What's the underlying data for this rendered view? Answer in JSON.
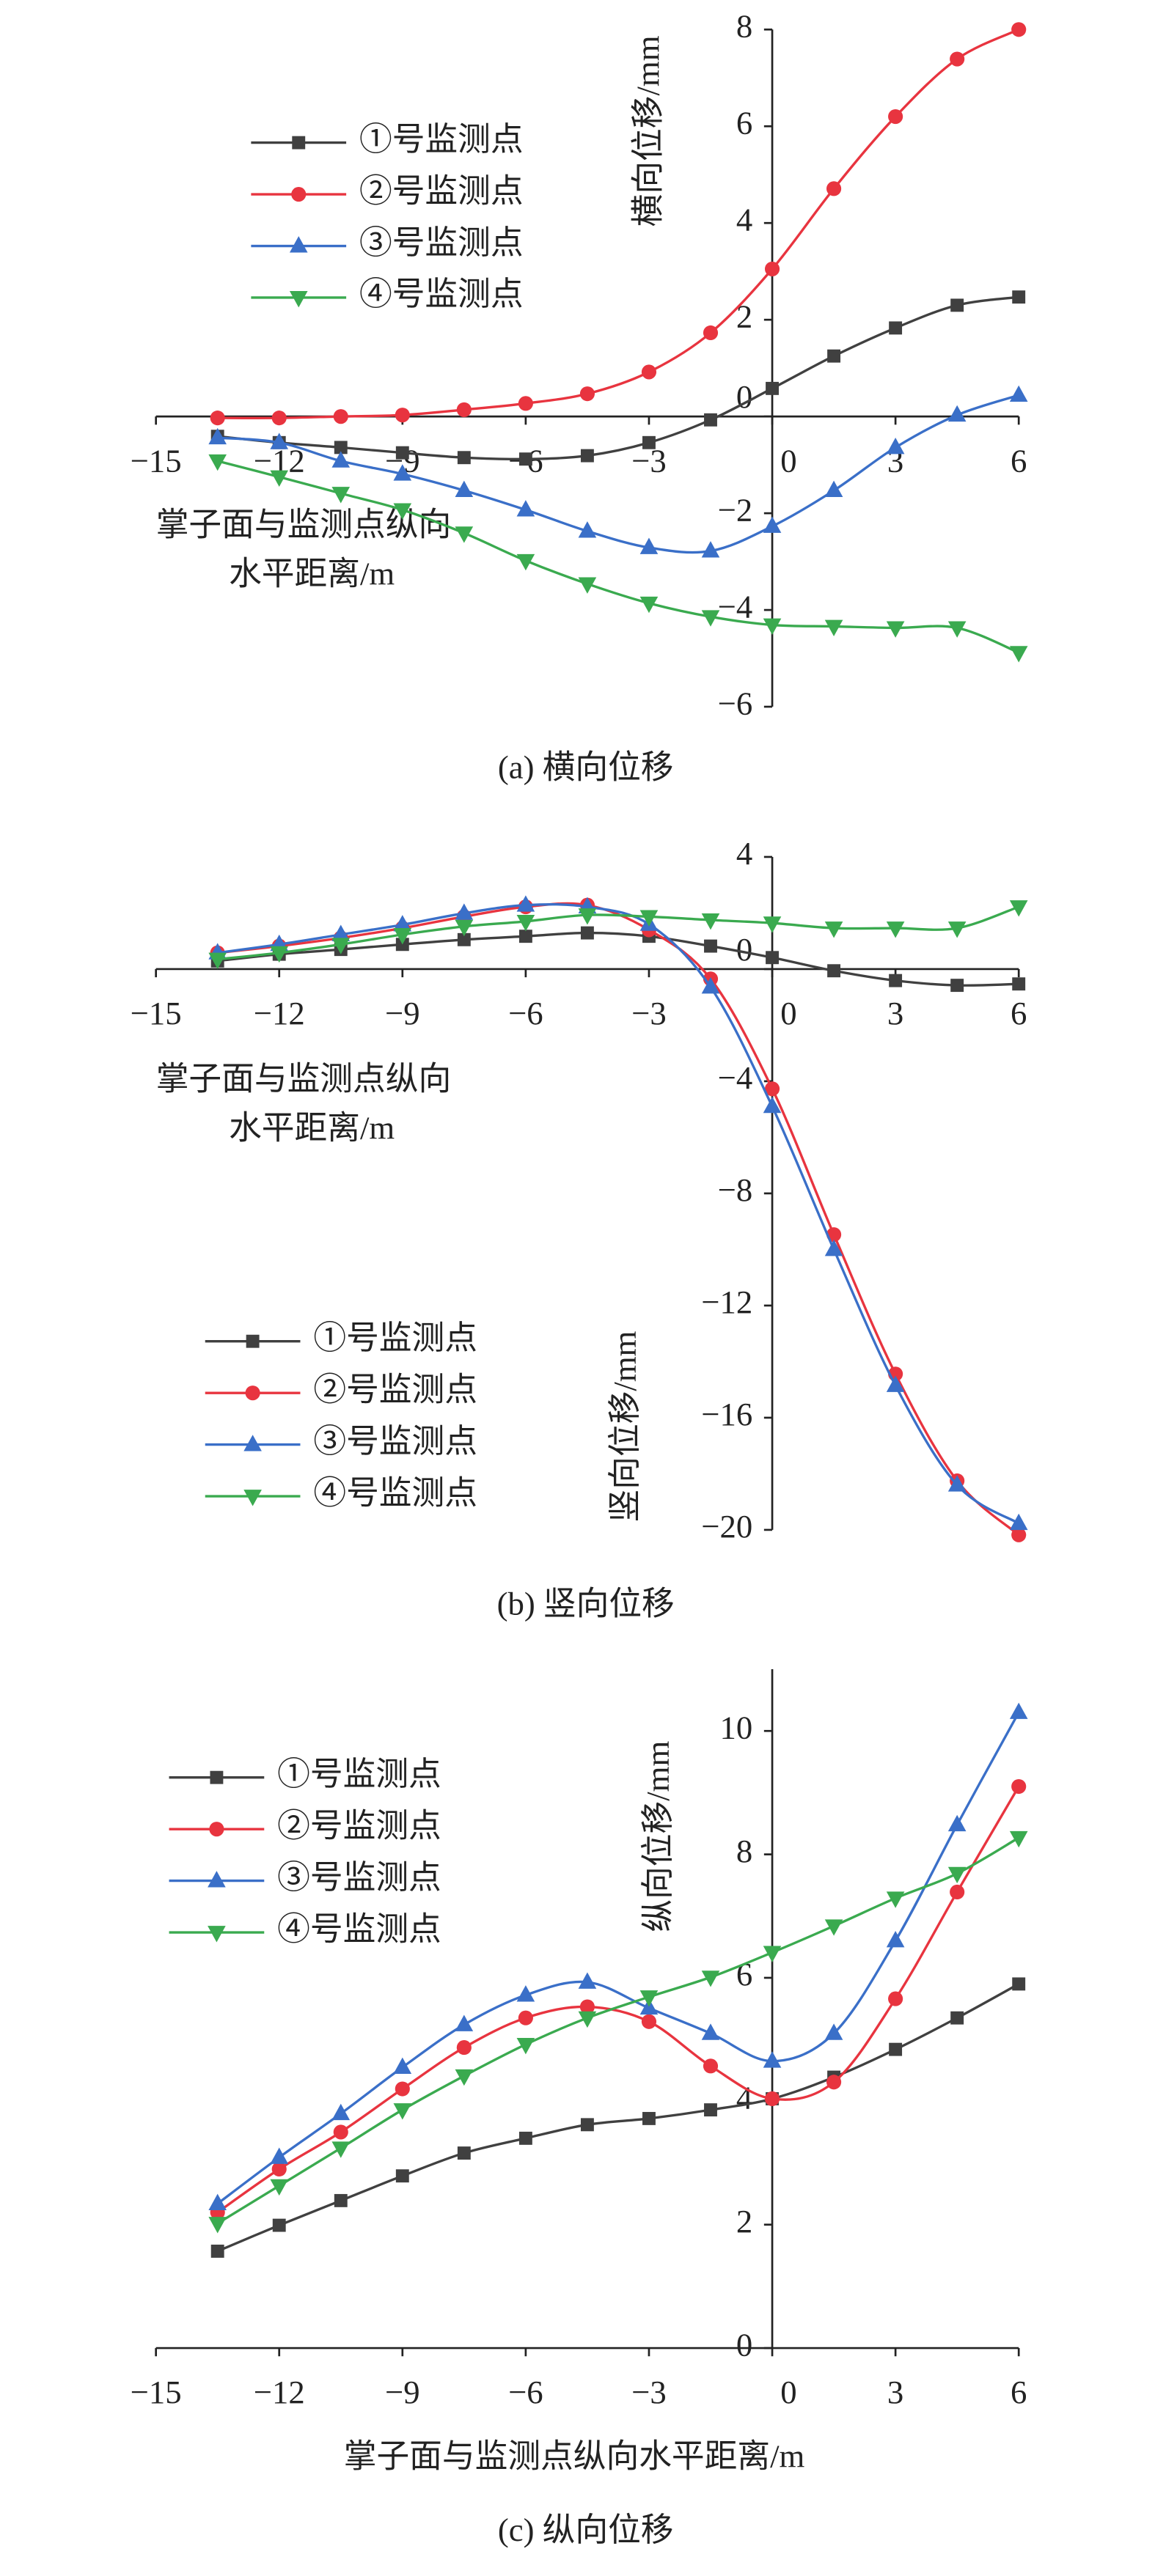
{
  "chart_data": [
    {
      "type": "line",
      "caption": "(a) 横向位移",
      "x_label": [
        "掌子面与监测点纵向",
        "水平距离/m"
      ],
      "y_label": "横向位移/mm",
      "xlim": [
        -15,
        6
      ],
      "ylim": [
        -6,
        8
      ],
      "xticks": [
        {
          "value": -15,
          "label": "−15"
        },
        {
          "value": -12,
          "label": "−12"
        },
        {
          "value": -9,
          "label": "−9"
        },
        {
          "value": -6,
          "label": "−6"
        },
        {
          "value": -3,
          "label": "−3"
        },
        0,
        3,
        6
      ],
      "yticks": [
        {
          "value": -6,
          "label": "−6"
        },
        {
          "value": -4,
          "label": "−4"
        },
        {
          "value": -2,
          "label": "−2"
        },
        0,
        2,
        4,
        6,
        8
      ],
      "legend": "upper left",
      "x": [
        -13.5,
        -12,
        -10.5,
        -9,
        -7.5,
        -6,
        -4.5,
        -3,
        -1.5,
        0,
        1.5,
        3,
        4.5,
        6
      ],
      "series": [
        {
          "name": "①号监测点",
          "color": "#404040",
          "marker": "square",
          "values": [
            -0.41,
            -0.54,
            -0.64,
            -0.75,
            -0.85,
            -0.88,
            -0.81,
            -0.54,
            -0.07,
            0.58,
            1.25,
            1.83,
            2.3,
            2.47
          ]
        },
        {
          "name": "②号监测点",
          "color": "#e8343f",
          "marker": "circle",
          "values": [
            -0.03,
            -0.03,
            0,
            0.03,
            0.14,
            0.27,
            0.47,
            0.92,
            1.73,
            3.05,
            4.71,
            6.2,
            7.39,
            8.0
          ]
        },
        {
          "name": "③号监测点",
          "color": "#3a6fc8",
          "marker": "triangle-up",
          "values": [
            -0.44,
            -0.54,
            -0.92,
            -1.19,
            -1.53,
            -1.93,
            -2.37,
            -2.71,
            -2.78,
            -2.27,
            -1.53,
            -0.64,
            0.03,
            0.44
          ]
        },
        {
          "name": "④号监测点",
          "color": "#3aaa4f",
          "marker": "triangle-down",
          "values": [
            -0.92,
            -1.25,
            -1.59,
            -1.93,
            -2.41,
            -2.98,
            -3.46,
            -3.86,
            -4.14,
            -4.31,
            -4.34,
            -4.37,
            -4.37,
            -4.88
          ]
        }
      ]
    },
    {
      "type": "line",
      "caption": "(b) 竖向位移",
      "x_label": [
        "掌子面与监测点纵向",
        "水平距离/m"
      ],
      "y_label": "竖向位移/mm",
      "xlim": [
        -15,
        6
      ],
      "ylim": [
        -20,
        4
      ],
      "xticks": [
        {
          "value": -15,
          "label": "−15"
        },
        {
          "value": -12,
          "label": "−12"
        },
        {
          "value": -9,
          "label": "−9"
        },
        {
          "value": -6,
          "label": "−6"
        },
        {
          "value": -3,
          "label": "−3"
        },
        0,
        3,
        6
      ],
      "yticks": [
        {
          "value": -20,
          "label": "−20"
        },
        {
          "value": -16,
          "label": "−16"
        },
        {
          "value": -12,
          "label": "−12"
        },
        {
          "value": -8,
          "label": "−8"
        },
        {
          "value": -4,
          "label": "−4"
        },
        0,
        4
      ],
      "legend": "lower left",
      "x": [
        -13.5,
        -12,
        -10.5,
        -9,
        -7.5,
        -6,
        -4.5,
        -3,
        -1.5,
        0,
        1.5,
        3,
        4.5,
        6
      ],
      "series": [
        {
          "name": "①号监测点",
          "color": "#404040",
          "marker": "square",
          "values": [
            0.29,
            0.53,
            0.7,
            0.88,
            1.05,
            1.17,
            1.29,
            1.17,
            0.82,
            0.41,
            -0.06,
            -0.41,
            -0.58,
            -0.53
          ]
        },
        {
          "name": "②号监测点",
          "color": "#e8343f",
          "marker": "circle",
          "values": [
            0.58,
            0.82,
            1.11,
            1.46,
            1.87,
            2.22,
            2.28,
            1.4,
            -0.35,
            -4.27,
            -9.47,
            -14.44,
            -18.25,
            -20.18
          ]
        },
        {
          "name": "③号监测点",
          "color": "#3a6fc8",
          "marker": "triangle-up",
          "values": [
            0.58,
            0.88,
            1.23,
            1.58,
            1.99,
            2.28,
            2.22,
            1.6,
            -0.64,
            -4.9,
            -10.0,
            -14.85,
            -18.4,
            -19.77
          ]
        },
        {
          "name": "④号监测点",
          "color": "#3aaa4f",
          "marker": "triangle-down",
          "values": [
            0.35,
            0.58,
            0.88,
            1.23,
            1.52,
            1.7,
            1.93,
            1.87,
            1.75,
            1.64,
            1.46,
            1.46,
            1.46,
            2.22
          ]
        }
      ]
    },
    {
      "type": "line",
      "caption": "(c) 纵向位移",
      "x_label": [
        "掌子面与监测点纵向水平距离/m"
      ],
      "y_label": "纵向位移/mm",
      "xlim": [
        -15,
        6
      ],
      "ylim": [
        0,
        11
      ],
      "xticks": [
        {
          "value": -15,
          "label": "−15"
        },
        {
          "value": -12,
          "label": "−12"
        },
        {
          "value": -9,
          "label": "−9"
        },
        {
          "value": -6,
          "label": "−6"
        },
        {
          "value": -3,
          "label": "−3"
        },
        0,
        3,
        6
      ],
      "yticks": [
        0,
        2,
        4,
        6,
        8,
        10
      ],
      "legend": "upper left",
      "x": [
        -13.5,
        -12,
        -10.5,
        -9,
        -7.5,
        -6,
        -4.5,
        -3,
        -1.5,
        0,
        1.5,
        3,
        4.5,
        6
      ],
      "series": [
        {
          "name": "①号监测点",
          "color": "#404040",
          "marker": "square",
          "values": [
            1.57,
            1.99,
            2.39,
            2.79,
            3.16,
            3.4,
            3.62,
            3.72,
            3.86,
            4.04,
            4.39,
            4.84,
            5.35,
            5.9
          ]
        },
        {
          "name": "②号监测点",
          "color": "#e8343f",
          "marker": "circle",
          "values": [
            2.2,
            2.9,
            3.5,
            4.2,
            4.87,
            5.35,
            5.53,
            5.29,
            4.57,
            4.04,
            4.31,
            5.66,
            7.39,
            9.1
          ]
        },
        {
          "name": "③号监测点",
          "color": "#3a6fc8",
          "marker": "triangle-up",
          "values": [
            2.34,
            3.09,
            3.8,
            4.55,
            5.24,
            5.72,
            5.93,
            5.51,
            5.1,
            4.65,
            5.1,
            6.6,
            8.48,
            10.3
          ]
        },
        {
          "name": "④号监测点",
          "color": "#3aaa4f",
          "marker": "triangle-down",
          "values": [
            2.02,
            2.63,
            3.24,
            3.86,
            4.41,
            4.92,
            5.35,
            5.69,
            6.01,
            6.41,
            6.84,
            7.29,
            7.69,
            8.27
          ]
        }
      ]
    }
  ]
}
